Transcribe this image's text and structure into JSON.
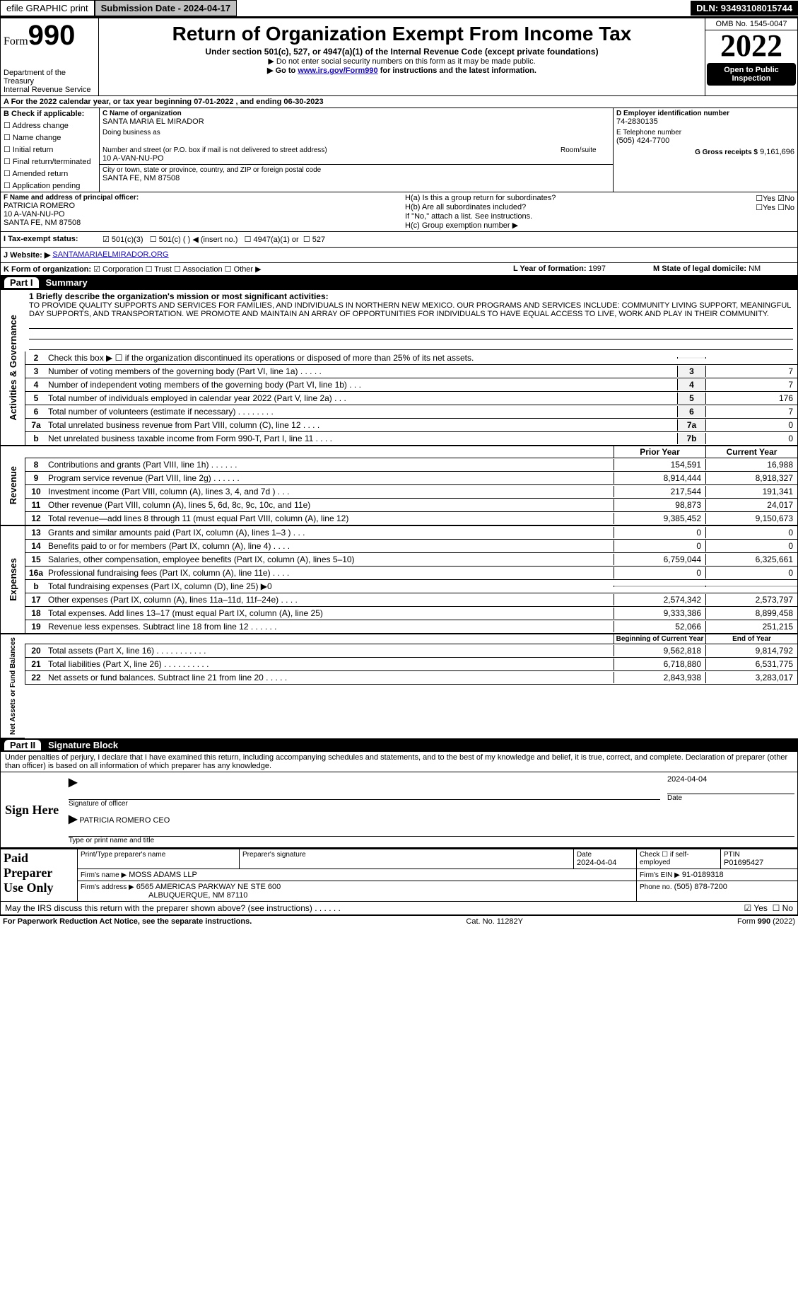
{
  "topbar": {
    "efile": "efile GRAPHIC print",
    "submission": "Submission Date - 2024-04-17",
    "dln": "DLN: 93493108015744"
  },
  "header": {
    "form_word": "Form",
    "form_num": "990",
    "dept1": "Department of the Treasury",
    "dept2": "Internal Revenue Service",
    "title": "Return of Organization Exempt From Income Tax",
    "sub1": "Under section 501(c), 527, or 4947(a)(1) of the Internal Revenue Code (except private foundations)",
    "sub2": "▶ Do not enter social security numbers on this form as it may be made public.",
    "sub3_pre": "▶ Go to ",
    "sub3_link": "www.irs.gov/Form990",
    "sub3_post": " for instructions and the latest information.",
    "omb": "OMB No. 1545-0047",
    "year": "2022",
    "open1": "Open to Public",
    "open2": "Inspection"
  },
  "line_a": "A For the 2022 calendar year, or tax year beginning 07-01-2022   , and ending 06-30-2023",
  "box_b": {
    "hdr": "B Check if applicable:",
    "items": [
      "Address change",
      "Name change",
      "Initial return",
      "Final return/terminated",
      "Amended return",
      "Application pending"
    ]
  },
  "box_c": {
    "lbl_name": "C Name of organization",
    "org": "SANTA MARIA EL MIRADOR",
    "dba": "Doing business as",
    "street_lbl": "Number and street (or P.O. box if mail is not delivered to street address)",
    "room_lbl": "Room/suite",
    "street": "10 A-VAN-NU-PO",
    "city_lbl": "City or town, state or province, country, and ZIP or foreign postal code",
    "city": "SANTA FE, NM  87508"
  },
  "box_d": {
    "lbl": "D Employer identification number",
    "val": "74-2830135"
  },
  "box_e": {
    "lbl": "E Telephone number",
    "val": "(505) 424-7700"
  },
  "box_g": {
    "lbl": "G Gross receipts $",
    "val": "9,161,696"
  },
  "box_f": {
    "lbl": "F  Name and address of principal officer:",
    "l1": "PATRICIA ROMERO",
    "l2": "10 A-VAN-NU-PO",
    "l3": "SANTA FE, NM  87508"
  },
  "box_h": {
    "ha": "H(a)  Is this a group return for subordinates?",
    "yesno_a": [
      "Yes",
      "No"
    ],
    "hb": "H(b)  Are all subordinates included?",
    "hb_note": "If \"No,\" attach a list. See instructions.",
    "hc": "H(c)  Group exemption number ▶"
  },
  "box_i": {
    "lbl": "I   Tax-exempt status:",
    "o1": "501(c)(3)",
    "o2": "501(c) (  ) ◀ (insert no.)",
    "o3": "4947(a)(1) or",
    "o4": "527"
  },
  "box_j": {
    "lbl": "J   Website: ▶",
    "val": "SANTAMARIAELMIRADOR.ORG"
  },
  "box_k": {
    "lbl": "K Form of organization:",
    "o1": "Corporation",
    "o2": "Trust",
    "o3": "Association",
    "o4": "Other ▶"
  },
  "box_l": {
    "lbl": "L Year of formation: ",
    "val": "1997"
  },
  "box_m": {
    "lbl": "M State of legal domicile: ",
    "val": "NM"
  },
  "part1": {
    "num": "Part I",
    "title": "Summary"
  },
  "p1_l1_lbl": "1 Briefly describe the organization's mission or most significant activities:",
  "p1_l1_txt": "TO PROVIDE QUALITY SUPPORTS AND SERVICES FOR FAMILIES, AND INDIVIDUALS IN NORTHERN NEW MEXICO. OUR PROGRAMS AND SERVICES INCLUDE: COMMUNITY LIVING SUPPORT, MEANINGFUL DAY SUPPORTS, AND TRANSPORTATION. WE PROMOTE AND MAINTAIN AN ARRAY OF OPPORTUNITIES FOR INDIVIDUALS TO HAVE EQUAL ACCESS TO LIVE, WORK AND PLAY IN THEIR COMMUNITY.",
  "gov_lines": [
    {
      "n": "2",
      "lbl": "Check this box ▶ ☐  if the organization discontinued its operations or disposed of more than 25% of its net assets.",
      "box": "",
      "val": ""
    },
    {
      "n": "3",
      "lbl": "Number of voting members of the governing body (Part VI, line 1a)   .     .     .     .     .",
      "box": "3",
      "val": "7"
    },
    {
      "n": "4",
      "lbl": "Number of independent voting members of the governing body (Part VI, line 1b)   .     .     .",
      "box": "4",
      "val": "7"
    },
    {
      "n": "5",
      "lbl": "Total number of individuals employed in calendar year 2022 (Part V, line 2a)   .     .     .",
      "box": "5",
      "val": "176"
    },
    {
      "n": "6",
      "lbl": "Total number of volunteers (estimate if necessary)    .     .     .     .     .     .     .     .",
      "box": "6",
      "val": "7"
    },
    {
      "n": "7a",
      "lbl": "Total unrelated business revenue from Part VIII, column (C), line 12   .     .     .     .",
      "box": "7a",
      "val": "0"
    },
    {
      "n": "b",
      "lbl": "Net unrelated business taxable income from Form 990-T, Part I, line 11   .     .     .     .",
      "box": "7b",
      "val": "0"
    }
  ],
  "col_hdr": {
    "prior": "Prior Year",
    "current": "Current Year"
  },
  "revenue_lines": [
    {
      "n": "8",
      "lbl": "Contributions and grants (Part VIII, line 1h)   .     .     .     .     .     .",
      "p": "154,591",
      "c": "16,988"
    },
    {
      "n": "9",
      "lbl": "Program service revenue (Part VIII, line 2g)   .     .     .     .     .     .",
      "p": "8,914,444",
      "c": "8,918,327"
    },
    {
      "n": "10",
      "lbl": "Investment income (Part VIII, column (A), lines 3, 4, and 7d )   .     .     .",
      "p": "217,544",
      "c": "191,341"
    },
    {
      "n": "11",
      "lbl": "Other revenue (Part VIII, column (A), lines 5, 6d, 8c, 9c, 10c, and 11e)",
      "p": "98,873",
      "c": "24,017"
    },
    {
      "n": "12",
      "lbl": "Total revenue—add lines 8 through 11 (must equal Part VIII, column (A), line 12)",
      "p": "9,385,452",
      "c": "9,150,673"
    }
  ],
  "expense_lines": [
    {
      "n": "13",
      "lbl": "Grants and similar amounts paid (Part IX, column (A), lines 1–3 )   .     .     .",
      "p": "0",
      "c": "0"
    },
    {
      "n": "14",
      "lbl": "Benefits paid to or for members (Part IX, column (A), line 4)   .     .     .     .",
      "p": "0",
      "c": "0"
    },
    {
      "n": "15",
      "lbl": "Salaries, other compensation, employee benefits (Part IX, column (A), lines 5–10)",
      "p": "6,759,044",
      "c": "6,325,661"
    },
    {
      "n": "16a",
      "lbl": "Professional fundraising fees (Part IX, column (A), line 11e)   .     .     .     .",
      "p": "0",
      "c": "0"
    },
    {
      "n": "b",
      "lbl": "Total fundraising expenses (Part IX, column (D), line 25) ▶0",
      "p": "",
      "c": ""
    },
    {
      "n": "17",
      "lbl": "Other expenses (Part IX, column (A), lines 11a–11d, 11f–24e)   .     .     .     .",
      "p": "2,574,342",
      "c": "2,573,797"
    },
    {
      "n": "18",
      "lbl": "Total expenses. Add lines 13–17 (must equal Part IX, column (A), line 25)",
      "p": "9,333,386",
      "c": "8,899,458"
    },
    {
      "n": "19",
      "lbl": "Revenue less expenses. Subtract line 18 from line 12   .     .     .     .     .     .",
      "p": "52,066",
      "c": "251,215"
    }
  ],
  "net_hdr": {
    "begin": "Beginning of Current Year",
    "end": "End of Year"
  },
  "net_lines": [
    {
      "n": "20",
      "lbl": "Total assets (Part X, line 16)   .     .     .     .     .     .     .     .     .     .     .",
      "p": "9,562,818",
      "c": "9,814,792"
    },
    {
      "n": "21",
      "lbl": "Total liabilities (Part X, line 26)   .     .     .     .     .     .     .     .     .     .",
      "p": "6,718,880",
      "c": "6,531,775"
    },
    {
      "n": "22",
      "lbl": "Net assets or fund balances. Subtract line 21 from line 20   .     .     .     .     .",
      "p": "2,843,938",
      "c": "3,283,017"
    }
  ],
  "vert_labels": {
    "gov": "Activities & Governance",
    "rev": "Revenue",
    "exp": "Expenses",
    "net": "Net Assets or Fund Balances"
  },
  "part2": {
    "num": "Part II",
    "title": "Signature Block"
  },
  "p2_decl": "Under penalties of perjury, I declare that I have examined this return, including accompanying schedules and statements, and to the best of my knowledge and belief, it is true, correct, and complete. Declaration of preparer (other than officer) is based on all information of which preparer has any knowledge.",
  "sign": {
    "here": "Sign Here",
    "sig_of_officer": "Signature of officer",
    "date": "Date",
    "date_v": "2024-04-04",
    "typed": "PATRICIA ROMERO CEO",
    "typed_lbl": "Type or print name and title"
  },
  "paid": {
    "lbl": "Paid Preparer Use Only",
    "c1": "Print/Type preparer's name",
    "c2": "Preparer's signature",
    "c3": "Date",
    "c3v": "2024-04-04",
    "c4": "Check ☐ if self-employed",
    "c5": "PTIN",
    "c5v": "P01695427",
    "firm_name_lbl": "Firm's name    ▶",
    "firm_name": "MOSS ADAMS LLP",
    "firm_ein_lbl": "Firm's EIN ▶",
    "firm_ein": "91-0189318",
    "firm_addr_lbl": "Firm's address ▶",
    "firm_addr1": "6565 AMERICAS PARKWAY NE STE 600",
    "firm_addr2": "ALBUQUERQUE, NM  87110",
    "phone_lbl": "Phone no.",
    "phone": "(505) 878-7200"
  },
  "discuss": "May the IRS discuss this return with the preparer shown above? (see instructions)   .     .     .     .     .     .",
  "discuss_yes": "Yes",
  "discuss_no": "No",
  "footer": {
    "l": "For Paperwork Reduction Act Notice, see the separate instructions.",
    "c": "Cat. No. 11282Y",
    "r": "Form 990 (2022)"
  }
}
